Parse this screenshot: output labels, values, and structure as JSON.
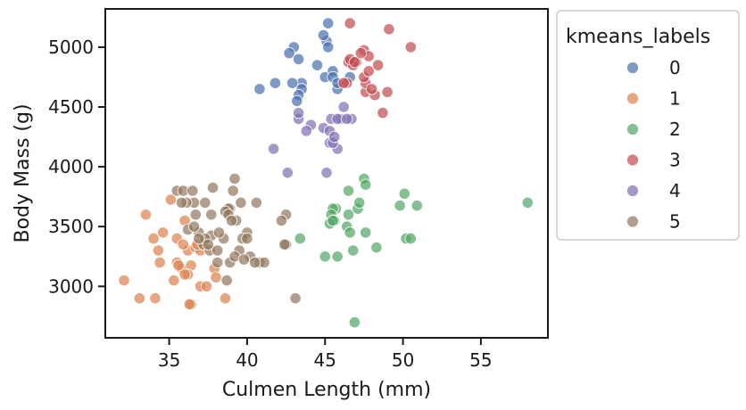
{
  "chart_data": {
    "type": "scatter",
    "title": "",
    "xlabel": "Culmen Length (mm)",
    "ylabel": "Body Mass (g)",
    "xlim": [
      30.9,
      59.3
    ],
    "ylim": [
      2570,
      5320
    ],
    "xticks": [
      35,
      40,
      45,
      50,
      55
    ],
    "yticks": [
      3000,
      3500,
      4000,
      4500,
      5000
    ],
    "grid": false,
    "legend": {
      "title": "kmeans_labels",
      "placement": "outside-right"
    },
    "series": [
      {
        "name": "0",
        "color": "#4c72b0",
        "points": [
          [
            45.2,
            5200
          ],
          [
            43,
            5000
          ],
          [
            42.7,
            4950
          ],
          [
            44.5,
            4850
          ],
          [
            41.8,
            4700
          ],
          [
            43.3,
            4900
          ],
          [
            45,
            4750
          ],
          [
            45.5,
            4800
          ],
          [
            45.5,
            4750
          ],
          [
            46.6,
            4750
          ],
          [
            43.5,
            4700
          ],
          [
            42.9,
            4700
          ],
          [
            43.5,
            4650
          ],
          [
            40.8,
            4650
          ],
          [
            45.8,
            4650
          ],
          [
            43.3,
            4600
          ],
          [
            45.1,
            5050
          ],
          [
            45.2,
            5000
          ],
          [
            44.9,
            5100
          ],
          [
            45.8,
            4700
          ],
          [
            43.2,
            4550
          ]
        ]
      },
      {
        "name": "1",
        "color": "#dd8452",
        "points": [
          [
            33.5,
            3600
          ],
          [
            34.6,
            3450
          ],
          [
            35.1,
            3725
          ],
          [
            36,
            3550
          ],
          [
            35.5,
            3400
          ],
          [
            34,
            3400
          ],
          [
            34.3,
            3300
          ],
          [
            36.2,
            3300
          ],
          [
            35.9,
            3350
          ],
          [
            36.7,
            3325
          ],
          [
            37,
            3300
          ],
          [
            34.4,
            3200
          ],
          [
            35.5,
            3200
          ],
          [
            35.8,
            3150
          ],
          [
            36.4,
            3175
          ],
          [
            36.2,
            3100
          ],
          [
            37.9,
            3150
          ],
          [
            32.1,
            3050
          ],
          [
            35.3,
            3050
          ],
          [
            36,
            3100
          ],
          [
            34.1,
            2900
          ],
          [
            33.1,
            2900
          ],
          [
            38.6,
            2900
          ],
          [
            36.4,
            2850
          ],
          [
            36.3,
            2850
          ],
          [
            37,
            3000
          ],
          [
            37.4,
            3000
          ],
          [
            38,
            3075
          ],
          [
            35.6,
            3175
          ],
          [
            36.8,
            3350
          ]
        ]
      },
      {
        "name": "2",
        "color": "#55a868",
        "points": [
          [
            58,
            3700
          ],
          [
            50.1,
            3775
          ],
          [
            50.9,
            3675
          ],
          [
            49.8,
            3675
          ],
          [
            47.5,
            3900
          ],
          [
            47.6,
            3850
          ],
          [
            46.5,
            3800
          ],
          [
            45.7,
            3650
          ],
          [
            45.5,
            3650
          ],
          [
            47.1,
            3650
          ],
          [
            47.2,
            3700
          ],
          [
            46.5,
            3600
          ],
          [
            45.4,
            3600
          ],
          [
            45.6,
            3550
          ],
          [
            45.3,
            3525
          ],
          [
            46.4,
            3500
          ],
          [
            46.6,
            3450
          ],
          [
            43.4,
            3400
          ],
          [
            50.2,
            3400
          ],
          [
            50.5,
            3400
          ],
          [
            47.6,
            3450
          ],
          [
            48.3,
            3325
          ],
          [
            46.8,
            3300
          ],
          [
            45,
            3250
          ],
          [
            45.8,
            3250
          ],
          [
            46.9,
            2700
          ],
          [
            45.5,
            3550
          ]
        ]
      },
      {
        "name": "3",
        "color": "#c44e52",
        "points": [
          [
            46.6,
            5200
          ],
          [
            49.1,
            5150
          ],
          [
            50.5,
            5000
          ],
          [
            47.5,
            4975
          ],
          [
            47,
            4875
          ],
          [
            48.4,
            4850
          ],
          [
            46.5,
            4875
          ],
          [
            46.8,
            4850
          ],
          [
            46.4,
            4700
          ],
          [
            46.2,
            4700
          ],
          [
            46.6,
            4900
          ],
          [
            47.8,
            4925
          ],
          [
            48.7,
            4450
          ],
          [
            49,
            4625
          ],
          [
            47.6,
            4625
          ],
          [
            48.2,
            4600
          ],
          [
            47.6,
            4700
          ],
          [
            47.5,
            4750
          ],
          [
            48,
            4650
          ],
          [
            47.8,
            4800
          ],
          [
            47.3,
            4950
          ],
          [
            46.9,
            4875
          ]
        ]
      },
      {
        "name": "4",
        "color": "#8172b3",
        "points": [
          [
            43.3,
            4400
          ],
          [
            43.3,
            4450
          ],
          [
            44.1,
            4350
          ],
          [
            43.8,
            4300
          ],
          [
            44.9,
            4325
          ],
          [
            45.4,
            4400
          ],
          [
            46,
            4400
          ],
          [
            46.7,
            4400
          ],
          [
            46.2,
            4500
          ],
          [
            45.8,
            4400
          ],
          [
            45.3,
            4300
          ],
          [
            45.3,
            4200
          ],
          [
            45.8,
            4150
          ],
          [
            41.7,
            4150
          ],
          [
            45.5,
            4200
          ],
          [
            42.6,
            3950
          ],
          [
            45.1,
            3950
          ],
          [
            45.6,
            4250
          ],
          [
            46.4,
            4400
          ]
        ]
      },
      {
        "name": "5",
        "color": "#937860",
        "points": [
          [
            35.5,
            3800
          ],
          [
            35.9,
            3800
          ],
          [
            36.5,
            3800
          ],
          [
            37.8,
            3825
          ],
          [
            39.2,
            3900
          ],
          [
            39.1,
            3800
          ],
          [
            39.6,
            3700
          ],
          [
            38.9,
            3650
          ],
          [
            38.8,
            3650
          ],
          [
            37.3,
            3700
          ],
          [
            36.6,
            3700
          ],
          [
            36.1,
            3700
          ],
          [
            35.8,
            3700
          ],
          [
            36.7,
            3600
          ],
          [
            37.7,
            3600
          ],
          [
            38.6,
            3625
          ],
          [
            38.8,
            3600
          ],
          [
            39.3,
            3550
          ],
          [
            39,
            3550
          ],
          [
            40.6,
            3700
          ],
          [
            42.5,
            3600
          ],
          [
            42.2,
            3550
          ],
          [
            40,
            3450
          ],
          [
            39.7,
            3400
          ],
          [
            40,
            3400
          ],
          [
            38.5,
            3400
          ],
          [
            37.7,
            3425
          ],
          [
            36.2,
            3475
          ],
          [
            36.9,
            3450
          ],
          [
            36.6,
            3500
          ],
          [
            37.2,
            3350
          ],
          [
            37.3,
            3400
          ],
          [
            37.6,
            3300
          ],
          [
            38.1,
            3300
          ],
          [
            38.9,
            3200
          ],
          [
            39.5,
            3300
          ],
          [
            39.2,
            3250
          ],
          [
            40.2,
            3250
          ],
          [
            40.8,
            3200
          ],
          [
            41.1,
            3200
          ],
          [
            40.5,
            3200
          ],
          [
            39.8,
            3225
          ],
          [
            38.1,
            3200
          ],
          [
            42.5,
            3350
          ],
          [
            42.4,
            3350
          ],
          [
            43.1,
            2900
          ],
          [
            38.7,
            3050
          ],
          [
            36.9,
            3400
          ],
          [
            37.5,
            3350
          ],
          [
            38.2,
            3450
          ]
        ]
      }
    ]
  }
}
